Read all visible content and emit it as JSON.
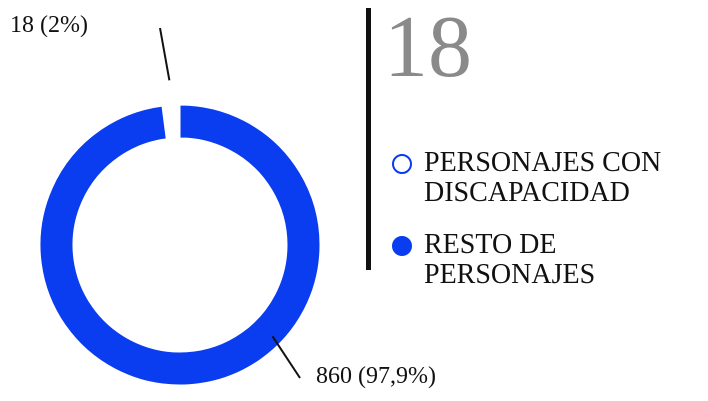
{
  "chart_data": {
    "type": "donut",
    "highlight": "18",
    "categories": [
      "PERSONAJES CON DISCAPACIDAD",
      "RESTO DE PERSONAJES"
    ],
    "values": [
      18,
      860
    ],
    "value_labels": [
      "18 (2%)",
      "860 (97,9%)"
    ],
    "colors": [
      "#ffffff",
      "#0a3cf0"
    ]
  }
}
